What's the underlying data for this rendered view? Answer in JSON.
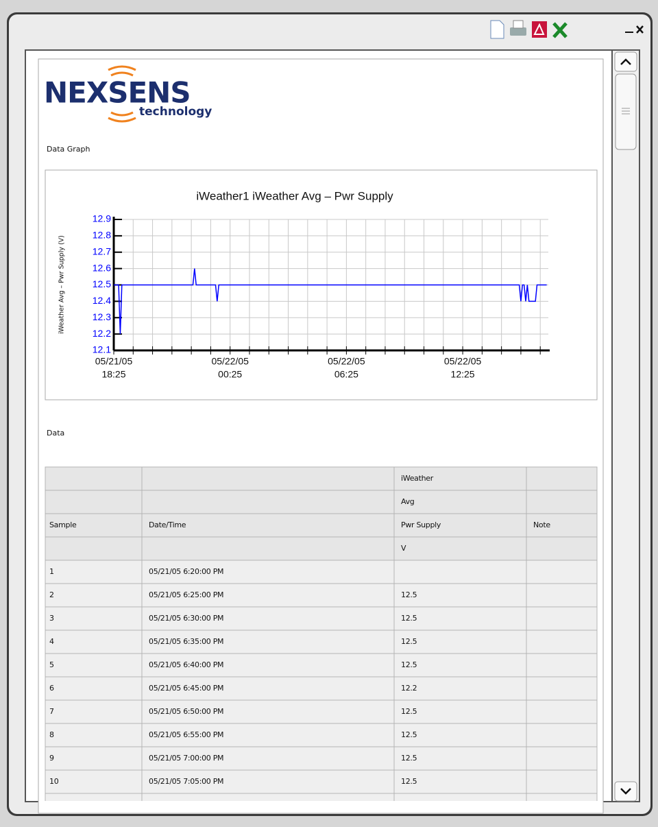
{
  "logo": {
    "name": "NEXSENS",
    "tagline": "technology"
  },
  "sections": {
    "graph": "Data Graph",
    "data": "Data"
  },
  "chart_data": {
    "type": "line",
    "title": "iWeather1  iWeather  Avg – Pwr Supply",
    "y_label": "iWeather  Avg – Pwr Supply (V)",
    "ylim": [
      12.1,
      12.9
    ],
    "yticks": [
      12.1,
      12.2,
      12.3,
      12.4,
      12.5,
      12.6,
      12.7,
      12.8,
      12.9
    ],
    "xlim": [
      "05/21/05 18:25",
      "05/22/05 16:50"
    ],
    "xticks": [
      {
        "value": "05/21/05 18:25",
        "label": [
          "05/21/05",
          "18:25"
        ]
      },
      {
        "value": "05/22/05 00:25",
        "label": [
          "05/22/05",
          "00:25"
        ]
      },
      {
        "value": "05/22/05 06:25",
        "label": [
          "05/22/05",
          "06:25"
        ]
      },
      {
        "value": "05/22/05 12:25",
        "label": [
          "05/22/05",
          "12:25"
        ]
      }
    ],
    "xticks_minor": [
      "05/21/05 19:25",
      "05/21/05 20:25",
      "05/21/05 21:25",
      "05/21/05 22:25",
      "05/21/05 23:25",
      "05/22/05 01:25",
      "05/22/05 02:25",
      "05/22/05 03:25",
      "05/22/05 04:25",
      "05/22/05 05:25",
      "05/22/05 07:25",
      "05/22/05 08:25",
      "05/22/05 09:25",
      "05/22/05 10:25",
      "05/22/05 11:25",
      "05/22/05 13:25",
      "05/22/05 14:25",
      "05/22/05 15:25",
      "05/22/05 16:25"
    ],
    "grid": true,
    "x": [
      "05/21/05 18:25",
      "05/21/05 18:30",
      "05/21/05 18:35",
      "05/21/05 18:40",
      "05/21/05 18:45",
      "05/21/05 18:50",
      "05/21/05 18:55",
      "05/21/05 19:00",
      "05/21/05 19:05",
      "05/21/05 22:30",
      "05/21/05 22:35",
      "05/21/05 22:40",
      "05/21/05 23:40",
      "05/21/05 23:45",
      "05/21/05 23:50",
      "05/22/05 15:20",
      "05/22/05 15:25",
      "05/22/05 15:30",
      "05/22/05 15:35",
      "05/22/05 15:40",
      "05/22/05 15:45",
      "05/22/05 15:50",
      "05/22/05 16:10",
      "05/22/05 16:15",
      "05/22/05 16:45"
    ],
    "series": [
      {
        "name": "Pwr Supply",
        "color": "#0000ff",
        "values": [
          12.5,
          12.5,
          12.5,
          12.5,
          12.2,
          12.5,
          12.5,
          12.5,
          12.5,
          12.5,
          12.6,
          12.5,
          12.5,
          12.4,
          12.5,
          12.5,
          12.4,
          12.5,
          12.5,
          12.4,
          12.5,
          12.4,
          12.4,
          12.5,
          12.5
        ]
      }
    ]
  },
  "table": {
    "header": [
      [
        null,
        null,
        "iWeather",
        null
      ],
      [
        null,
        null,
        "Avg",
        null
      ],
      [
        "Sample",
        "Date/Time",
        "Pwr Supply",
        "Note"
      ],
      [
        null,
        null,
        "V",
        null
      ]
    ],
    "rows": [
      [
        1,
        "05/21/05 6:20:00 PM",
        null,
        null
      ],
      [
        2,
        "05/21/05 6:25:00 PM",
        12.5,
        null
      ],
      [
        3,
        "05/21/05 6:30:00 PM",
        12.5,
        null
      ],
      [
        4,
        "05/21/05 6:35:00 PM",
        12.5,
        null
      ],
      [
        5,
        "05/21/05 6:40:00 PM",
        12.5,
        null
      ],
      [
        6,
        "05/21/05 6:45:00 PM",
        12.2,
        null
      ],
      [
        7,
        "05/21/05 6:50:00 PM",
        12.5,
        null
      ],
      [
        8,
        "05/21/05 6:55:00 PM",
        12.5,
        null
      ],
      [
        9,
        "05/21/05 7:00:00 PM",
        12.5,
        null
      ],
      [
        10,
        "05/21/05 7:05:00 PM",
        12.5,
        null
      ]
    ]
  }
}
